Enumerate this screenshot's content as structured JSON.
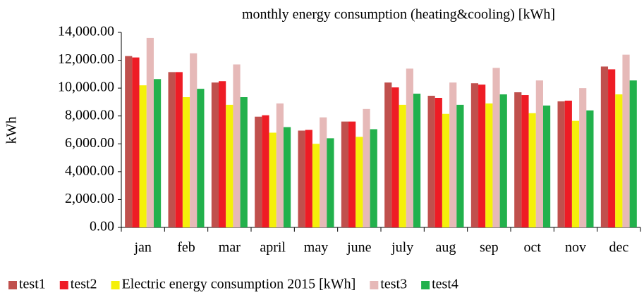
{
  "chart_data": {
    "type": "bar",
    "title": "monthly energy consumption  (heating&cooling) [kWh]",
    "y_label": "kWh",
    "categories": [
      "jan",
      "feb",
      "mar",
      "april",
      "may",
      "june",
      "july",
      "aug",
      "sep",
      "oct",
      "nov",
      "dec"
    ],
    "series": [
      {
        "name": "test1",
        "color": "#c0504d",
        "values": [
          12300,
          11150,
          10400,
          7950,
          6950,
          7600,
          10400,
          9450,
          10350,
          9700,
          9050,
          11550
        ]
      },
      {
        "name": "test2",
        "color": "#ee1c25",
        "values": [
          12200,
          11150,
          10500,
          8050,
          7000,
          7600,
          10050,
          9300,
          10250,
          9500,
          9100,
          11350
        ]
      },
      {
        "name": "Electric energy consumption 2015 [kWh]",
        "color": "#f5f00a",
        "values": [
          10200,
          9350,
          8800,
          6800,
          6000,
          6500,
          8800,
          8150,
          8900,
          8200,
          7650,
          9550
        ]
      },
      {
        "name": "test3",
        "color": "#e6b9b8",
        "values": [
          13600,
          12500,
          11700,
          8900,
          7900,
          8500,
          11400,
          10400,
          11450,
          10550,
          10000,
          12400
        ]
      },
      {
        "name": "test4",
        "color": "#22b14c",
        "values": [
          10650,
          9950,
          9350,
          7200,
          6400,
          7050,
          9600,
          8800,
          9550,
          8750,
          8400,
          10550
        ]
      }
    ],
    "ylim": [
      0,
      14000
    ],
    "yticks": [
      {
        "value": 0,
        "label": "0.00"
      },
      {
        "value": 2000,
        "label": "2,000.00"
      },
      {
        "value": 4000,
        "label": "4,000.00"
      },
      {
        "value": 6000,
        "label": "6,000.00"
      },
      {
        "value": 8000,
        "label": "8,000.00"
      },
      {
        "value": 10000,
        "label": "10,000.00"
      },
      {
        "value": 12000,
        "label": "12,000.00"
      },
      {
        "value": 14000,
        "label": "14,000.00"
      }
    ],
    "legend": "bottom"
  }
}
